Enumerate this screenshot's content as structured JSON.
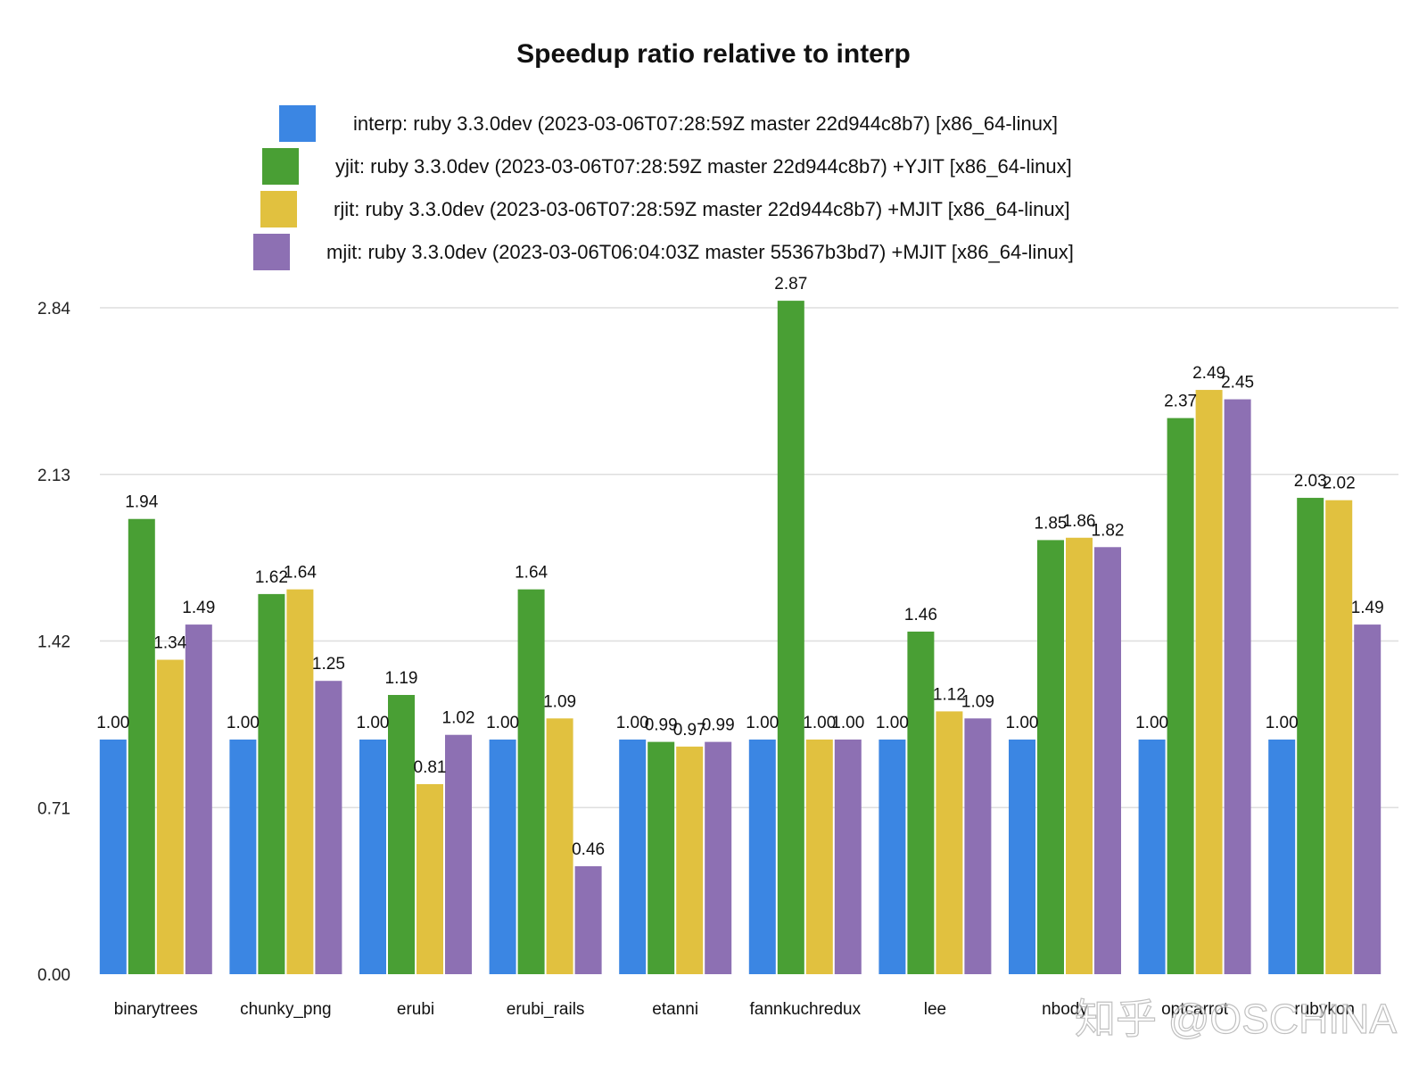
{
  "chart_data": {
    "type": "bar",
    "title": "Speedup ratio relative to interp",
    "xlabel": "",
    "ylabel": "",
    "ylim": [
      0,
      2.84
    ],
    "yticks": [
      "0.00",
      "0.71",
      "1.42",
      "2.13",
      "2.84"
    ],
    "grid": true,
    "legend_position": "top-center",
    "categories": [
      "binarytrees",
      "chunky_png",
      "erubi",
      "erubi_rails",
      "etanni",
      "fannkuchredux",
      "lee",
      "nbody",
      "optcarrot",
      "rubykon"
    ],
    "series": [
      {
        "name": "interp: ruby 3.3.0dev (2023-03-06T07:28:59Z master 22d944c8b7) [x86_64-linux]",
        "color": "#3B86E3",
        "values": [
          1.0,
          1.0,
          1.0,
          1.0,
          1.0,
          1.0,
          1.0,
          1.0,
          1.0,
          1.0
        ],
        "labels": [
          "1.00",
          "1.00",
          "1.00",
          "1.00",
          "1.00",
          "1.00",
          "1.00",
          "1.00",
          "1.00",
          "1.00"
        ]
      },
      {
        "name": "yjit: ruby 3.3.0dev (2023-03-06T07:28:59Z master 22d944c8b7) +YJIT [x86_64-linux]",
        "color": "#499F34",
        "values": [
          1.94,
          1.62,
          1.19,
          1.64,
          0.99,
          2.87,
          1.46,
          1.85,
          2.37,
          2.03
        ],
        "labels": [
          "1.94",
          "1.62",
          "1.19",
          "1.64",
          "0.99",
          "2.87",
          "1.46",
          "1.85",
          "2.37",
          "2.03"
        ]
      },
      {
        "name": "rjit: ruby 3.3.0dev (2023-03-06T07:28:59Z master 22d944c8b7) +MJIT [x86_64-linux]",
        "color": "#E1C13F",
        "values": [
          1.34,
          1.64,
          0.81,
          1.09,
          0.97,
          1.0,
          1.12,
          1.86,
          2.49,
          2.02
        ],
        "labels": [
          "1.34",
          "1.64",
          "0.81",
          "1.09",
          "0.97",
          "1.00",
          "1.12",
          "1.86",
          "2.49",
          "2.02"
        ]
      },
      {
        "name": "mjit: ruby 3.3.0dev (2023-03-06T06:04:03Z master 55367b3bd7) +MJIT [x86_64-linux]",
        "color": "#8D70B3",
        "values": [
          1.49,
          1.25,
          1.02,
          0.46,
          0.99,
          1.0,
          1.09,
          1.82,
          2.45,
          1.49
        ],
        "labels": [
          "1.49",
          "1.25",
          "1.02",
          "0.46",
          "0.99",
          "1.00",
          "1.09",
          "1.82",
          "2.45",
          "1.49"
        ]
      }
    ]
  },
  "watermark": "知乎 @OSCHINA"
}
